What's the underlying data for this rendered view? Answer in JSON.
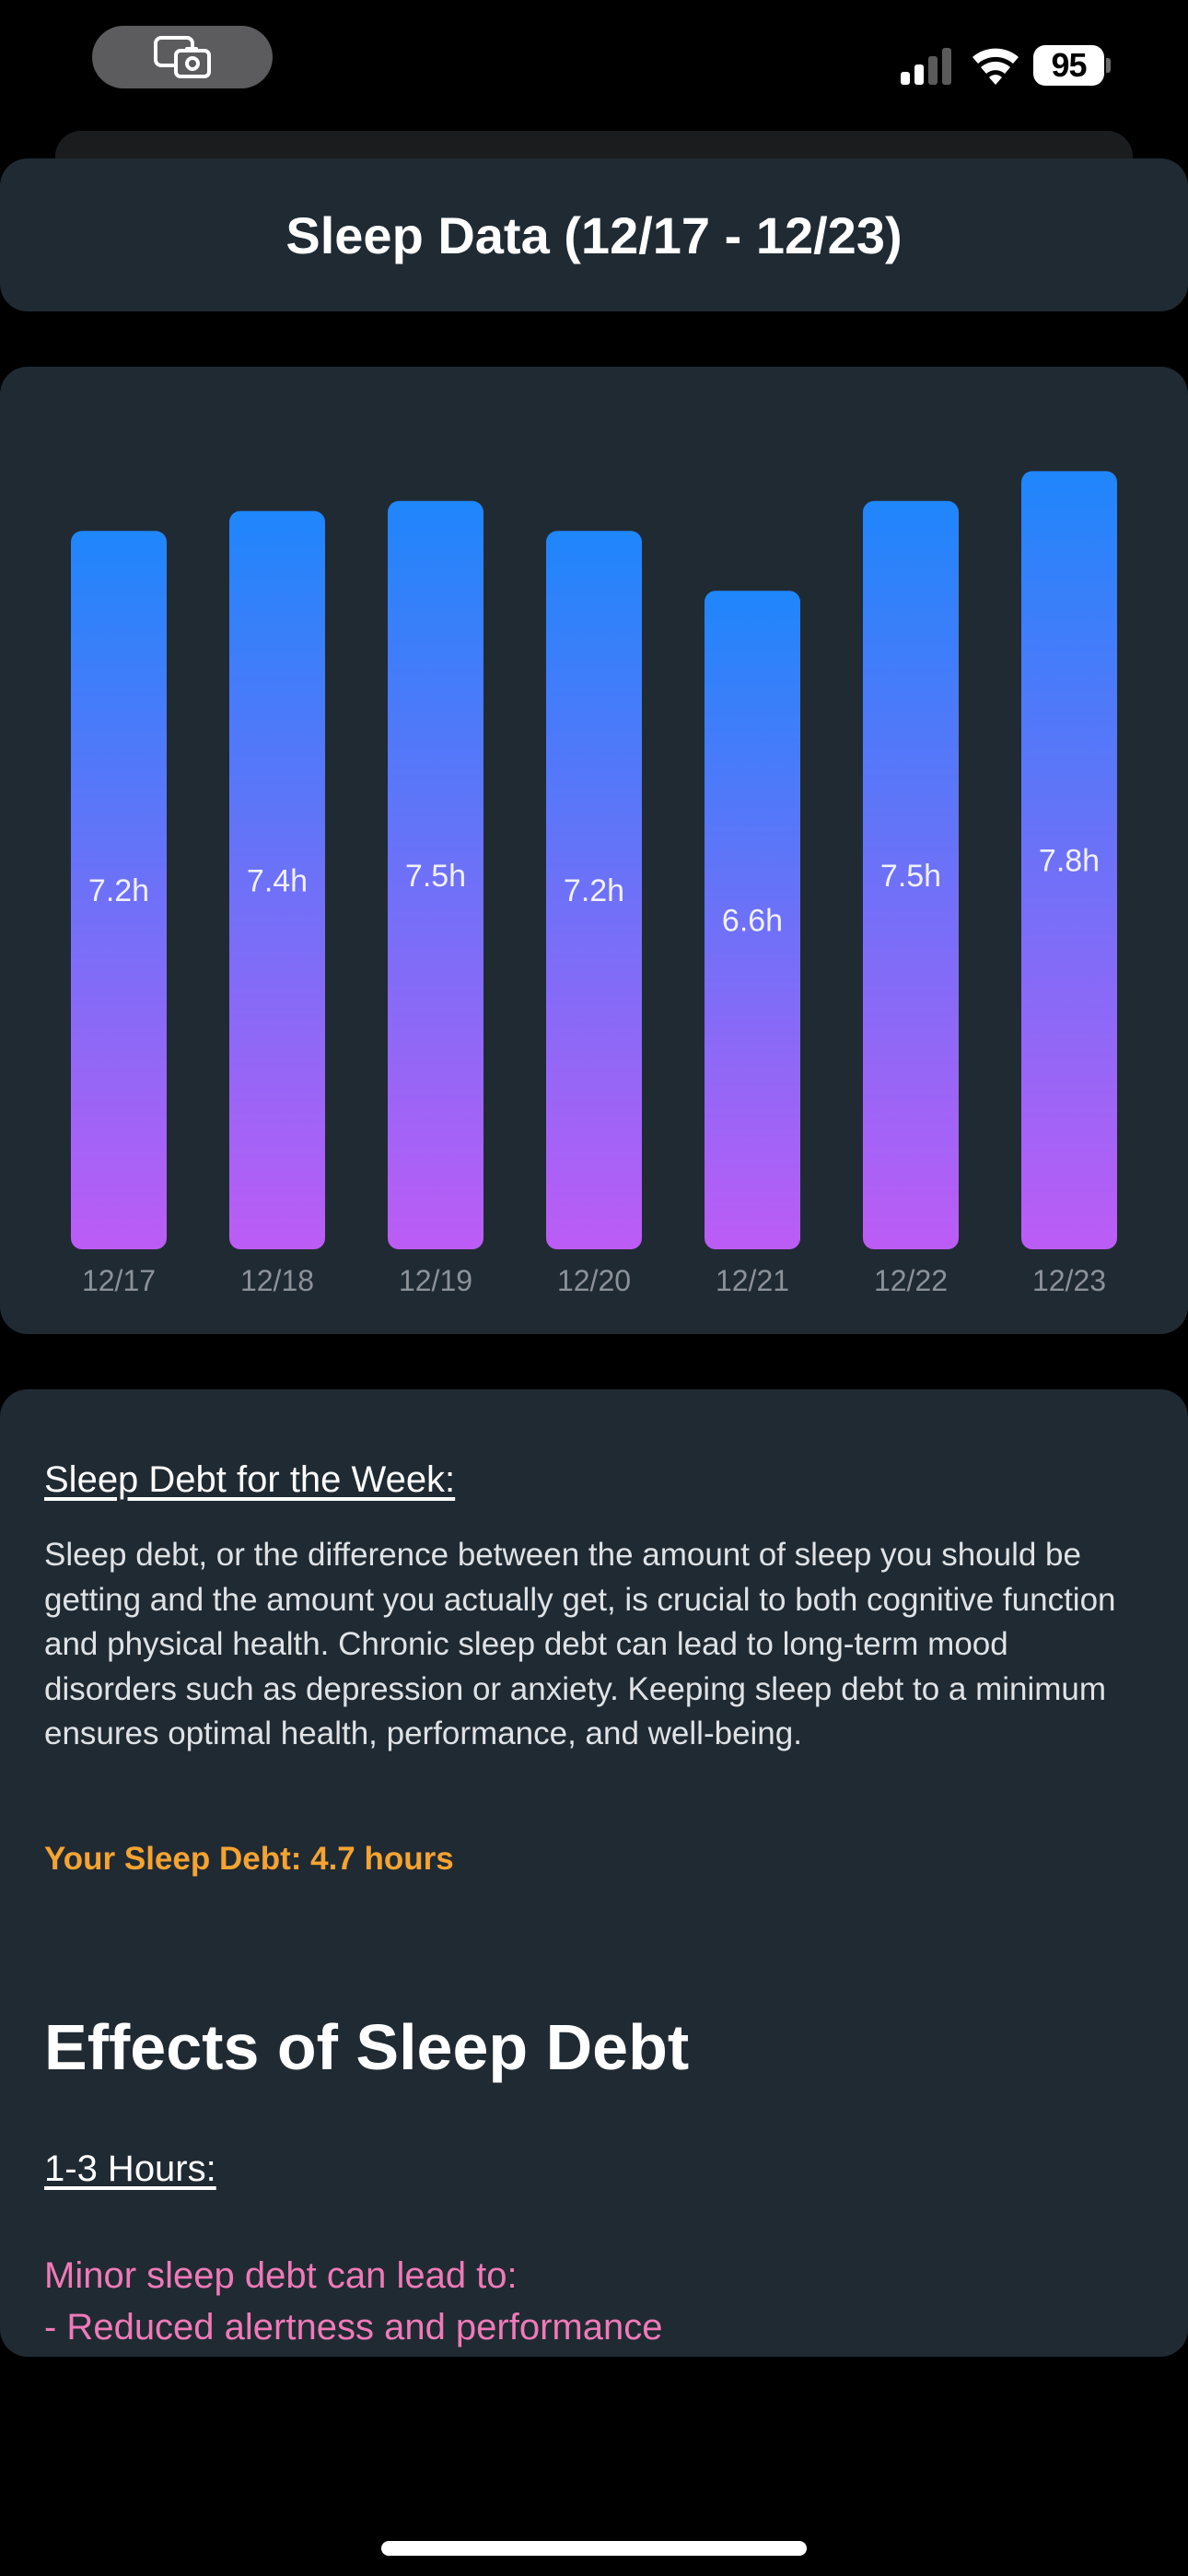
{
  "status_bar": {
    "battery_level": "95",
    "icons": [
      "screen-record-icon",
      "cellular-signal-icon",
      "wifi-icon",
      "battery-icon"
    ]
  },
  "header": {
    "title": "Sleep Data (12/17 - 12/23)"
  },
  "chart_data": {
    "type": "bar",
    "categories": [
      "12/17",
      "12/18",
      "12/19",
      "12/20",
      "12/21",
      "12/22",
      "12/23"
    ],
    "values": [
      7.2,
      7.4,
      7.5,
      7.2,
      6.6,
      7.5,
      7.8
    ],
    "value_labels": [
      "7.2h",
      "7.4h",
      "7.5h",
      "7.2h",
      "6.6h",
      "7.5h",
      "7.8h"
    ],
    "title": "",
    "xlabel": "",
    "ylabel": "",
    "ylim": [
      0,
      8.2
    ],
    "grid": false,
    "legend": "none",
    "bar_gradient": [
      "#1f86fb",
      "#bc5cf5"
    ]
  },
  "sleep_debt": {
    "heading": "Sleep Debt for the Week:",
    "body": "Sleep debt, or the difference between the amount of sleep you should be getting and the amount you actually get, is crucial to both cognitive function and physical health. Chronic sleep debt can lead to long-term mood disorders such as depression or anxiety. Keeping sleep debt to a minimum ensures optimal health, performance, and well-being.",
    "summary": "Your Sleep Debt: 4.7 hours",
    "summary_color": "#f5a331"
  },
  "effects": {
    "title": "Effects of Sleep Debt",
    "ranges": [
      {
        "heading": "1-3 Hours:",
        "lines": [
          "Minor sleep debt can lead to:",
          "- Reduced alertness and performance"
        ]
      }
    ],
    "text_color": "#f07ab8"
  }
}
